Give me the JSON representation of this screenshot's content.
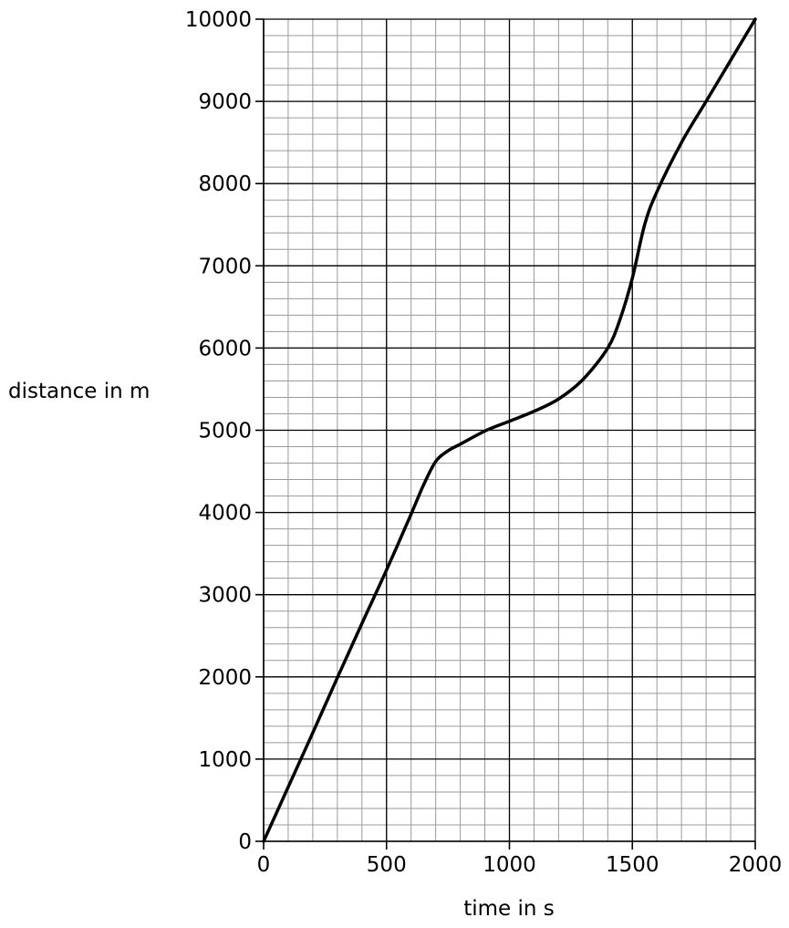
{
  "chart_data": {
    "type": "line",
    "title": "",
    "xlabel": "time in s",
    "ylabel": "distance in m",
    "xlim": [
      0,
      2000
    ],
    "ylim": [
      0,
      10000
    ],
    "x_ticks": [
      0,
      500,
      1000,
      1500,
      2000
    ],
    "y_ticks": [
      0,
      1000,
      2000,
      3000,
      4000,
      5000,
      6000,
      7000,
      8000,
      9000,
      10000
    ],
    "x_tick_labels": [
      "0",
      "500",
      "1000",
      "1500",
      "2000"
    ],
    "y_tick_labels": [
      "0",
      "1000",
      "2000",
      "3000",
      "4000",
      "5000",
      "6000",
      "7000",
      "8000",
      "9000",
      "10000"
    ],
    "minor_grid": {
      "x_step": 100,
      "y_step": 200
    },
    "grid": true,
    "series": [
      {
        "x": [
          0,
          100,
          200,
          300,
          400,
          500,
          600,
          650,
          700,
          750,
          800,
          900,
          1000,
          1100,
          1200,
          1300,
          1400,
          1450,
          1500,
          1550,
          1600,
          1700,
          1800,
          1900,
          2000
        ],
        "y": [
          0,
          660,
          1320,
          1990,
          2650,
          3300,
          3980,
          4330,
          4620,
          4750,
          4830,
          4990,
          5110,
          5230,
          5380,
          5620,
          6000,
          6350,
          6850,
          7500,
          7900,
          8500,
          9000,
          9500,
          10000
        ]
      }
    ]
  }
}
